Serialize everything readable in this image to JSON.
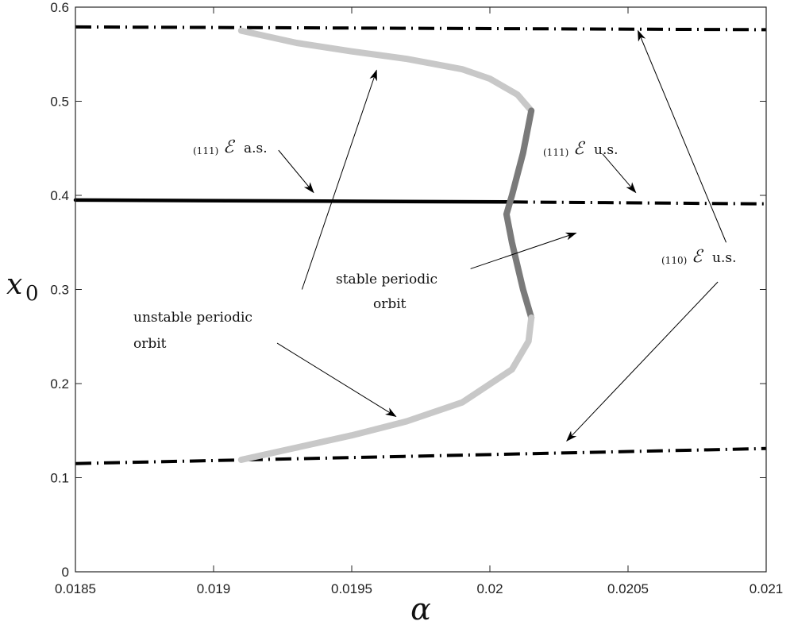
{
  "chart_data": {
    "type": "line",
    "title": "",
    "xlabel": "α",
    "ylabel_main": "x",
    "ylabel_sub": "0",
    "xlim": [
      0.0185,
      0.021
    ],
    "ylim": [
      0,
      0.6
    ],
    "grid": false,
    "x_ticks": [
      0.0185,
      0.019,
      0.0195,
      0.02,
      0.0205,
      0.021
    ],
    "x_tick_labels": [
      "0.0185",
      "0.019",
      "0.0195",
      "0.02",
      "0.0205",
      "0.021"
    ],
    "y_ticks": [
      0,
      0.1,
      0.2,
      0.3,
      0.4,
      0.5,
      0.6
    ],
    "y_tick_labels": [
      "0",
      "0.1",
      "0.2",
      "0.3",
      "0.4",
      "0.5",
      "0.6"
    ],
    "series": [
      {
        "style": "dashdot",
        "color": "#000000",
        "x": [
          0.0185,
          0.021
        ],
        "y": [
          0.579,
          0.576
        ]
      },
      {
        "style": "solid",
        "color": "#000000",
        "x": [
          0.0185,
          0.02008
        ],
        "y": [
          0.395,
          0.393
        ]
      },
      {
        "style": "dashdot",
        "color": "#000000",
        "x": [
          0.02008,
          0.021
        ],
        "y": [
          0.393,
          0.391
        ]
      },
      {
        "style": "dashdot",
        "color": "#000000",
        "x": [
          0.0185,
          0.021
        ],
        "y": [
          0.115,
          0.131
        ]
      },
      {
        "style": "solid-thick",
        "color": "#c8c8c8",
        "x": [
          0.0191,
          0.0193,
          0.0195,
          0.0197,
          0.0199,
          0.02,
          0.0201,
          0.02015
        ],
        "y": [
          0.575,
          0.562,
          0.553,
          0.545,
          0.534,
          0.524,
          0.507,
          0.49
        ]
      },
      {
        "style": "solid-thick",
        "color": "#7a7a7a",
        "x": [
          0.02015,
          0.02012,
          0.02008,
          0.02006,
          0.02008,
          0.02012,
          0.02015
        ],
        "y": [
          0.49,
          0.445,
          0.4,
          0.38,
          0.35,
          0.3,
          0.27
        ]
      },
      {
        "style": "solid-thick",
        "color": "#c8c8c8",
        "x": [
          0.02015,
          0.02014,
          0.02008,
          0.0199,
          0.0197,
          0.0195,
          0.0193,
          0.0191
        ],
        "y": [
          0.27,
          0.245,
          0.215,
          0.18,
          0.16,
          0.145,
          0.132,
          0.119
        ]
      }
    ],
    "annotations": {
      "e111_as": {
        "sub": "(111)",
        "sym": "ℰ",
        "text": "a.s."
      },
      "e111_us": {
        "sub": "(111)",
        "sym": "ℰ",
        "text": "u.s."
      },
      "e110_us": {
        "sub": "(110)",
        "sym": "ℰ",
        "text": "u.s."
      },
      "stable_line1": "stable periodic",
      "stable_line2": "orbit",
      "unstable_line1": "unstable periodic",
      "unstable_line2": "orbit"
    },
    "arrows": [
      {
        "from": [
          0.019235,
          0.448
        ],
        "to": [
          0.019362,
          0.403
        ]
      },
      {
        "from": [
          0.020408,
          0.444
        ],
        "to": [
          0.020528,
          0.403
        ]
      },
      {
        "from": [
          0.01993,
          0.322
        ],
        "to": [
          0.020312,
          0.36
        ]
      },
      {
        "from": [
          0.01932,
          0.3
        ],
        "to": [
          0.01959,
          0.533
        ]
      },
      {
        "from": [
          0.01923,
          0.243
        ],
        "to": [
          0.01966,
          0.165
        ]
      },
      {
        "from": [
          0.020855,
          0.35
        ],
        "to": [
          0.020536,
          0.575
        ]
      },
      {
        "from": [
          0.020825,
          0.308
        ],
        "to": [
          0.020278,
          0.139
        ]
      }
    ]
  }
}
